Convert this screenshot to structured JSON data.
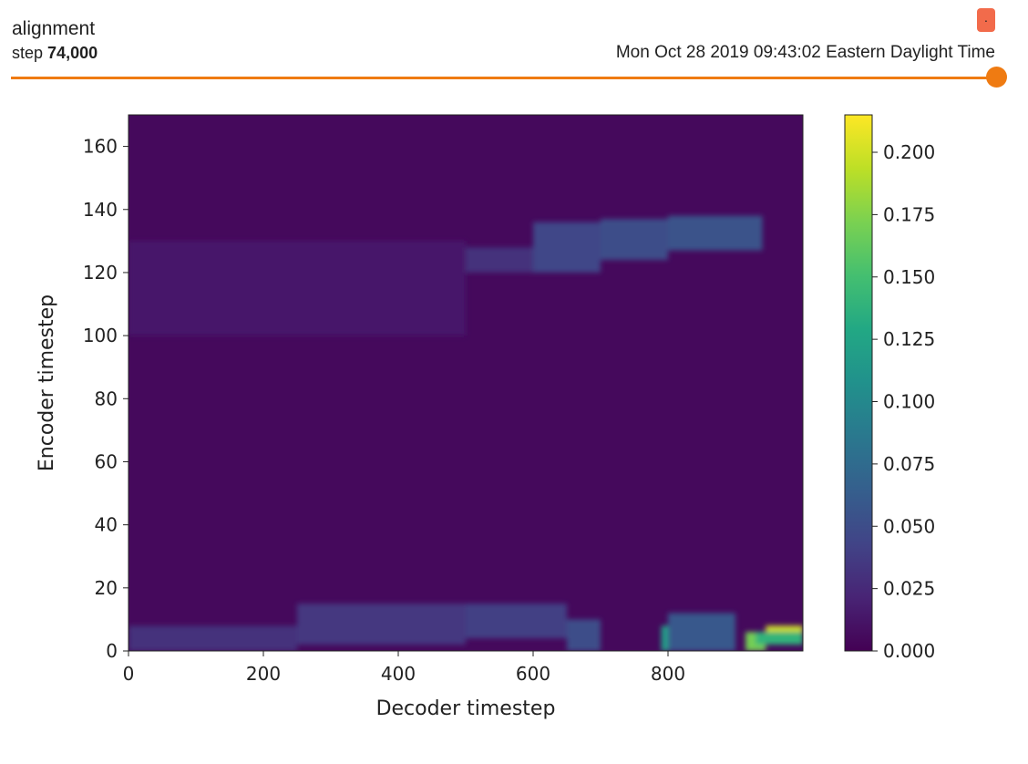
{
  "card": {
    "title": "alignment",
    "step_label": "step",
    "step_value": "74,000",
    "timestamp": "Mon Oct 28 2019 09:43:02 Eastern Daylight Time",
    "menu_glyph": "."
  },
  "chart_data": {
    "type": "heatmap",
    "xlabel": "Decoder timestep",
    "ylabel": "Encoder timestep",
    "xlim": [
      0,
      1000
    ],
    "ylim": [
      0,
      170
    ],
    "xticks": [
      "0",
      "200",
      "400",
      "600",
      "800"
    ],
    "yticks": [
      "0",
      "20",
      "40",
      "60",
      "80",
      "100",
      "120",
      "140",
      "160"
    ],
    "colorbar": {
      "min": 0.0,
      "max": 0.215,
      "ticks": [
        "0.000",
        "0.025",
        "0.050",
        "0.075",
        "0.100",
        "0.125",
        "0.150",
        "0.175",
        "0.200"
      ],
      "colormap": "viridis"
    },
    "background_value": 0.005,
    "features": [
      {
        "x": [
          0,
          100
        ],
        "y": [
          0,
          8
        ],
        "value": 0.03
      },
      {
        "x": [
          100,
          250
        ],
        "y": [
          0,
          8
        ],
        "value": 0.03
      },
      {
        "x": [
          250,
          500
        ],
        "y": [
          2,
          15
        ],
        "value": 0.035
      },
      {
        "x": [
          500,
          650
        ],
        "y": [
          4,
          15
        ],
        "value": 0.04
      },
      {
        "x": [
          650,
          700
        ],
        "y": [
          0,
          10
        ],
        "value": 0.05
      },
      {
        "x": [
          790,
          800
        ],
        "y": [
          0,
          8
        ],
        "value": 0.12
      },
      {
        "x": [
          800,
          900
        ],
        "y": [
          0,
          12
        ],
        "value": 0.06
      },
      {
        "x": [
          915,
          945
        ],
        "y": [
          0,
          6
        ],
        "value": 0.17
      },
      {
        "x": [
          945,
          1000
        ],
        "y": [
          6,
          8
        ],
        "value": 0.2
      },
      {
        "x": [
          930,
          1000
        ],
        "y": [
          2,
          6
        ],
        "value": 0.14
      },
      {
        "x": [
          500,
          600
        ],
        "y": [
          120,
          128
        ],
        "value": 0.03
      },
      {
        "x": [
          600,
          700
        ],
        "y": [
          120,
          136
        ],
        "value": 0.045
      },
      {
        "x": [
          700,
          800
        ],
        "y": [
          124,
          137
        ],
        "value": 0.05
      },
      {
        "x": [
          800,
          940
        ],
        "y": [
          127,
          138
        ],
        "value": 0.055
      },
      {
        "x": [
          0,
          500
        ],
        "y": [
          100,
          130
        ],
        "value": 0.015
      }
    ]
  }
}
